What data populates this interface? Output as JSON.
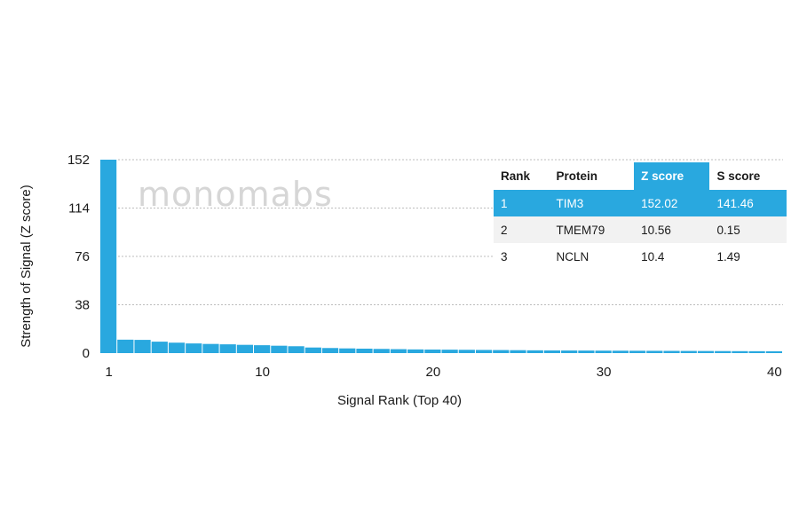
{
  "watermark": "monomabs",
  "chart_data": {
    "type": "bar",
    "title": "",
    "xlabel": "Signal Rank (Top 40)",
    "ylabel": "Strength of Signal (Z score)",
    "ylim": [
      0,
      152
    ],
    "yticks": [
      0,
      38,
      76,
      114,
      152
    ],
    "xticks": [
      1,
      10,
      20,
      30,
      40
    ],
    "grid": "horizontal dashed",
    "x": [
      1,
      2,
      3,
      4,
      5,
      6,
      7,
      8,
      9,
      10,
      11,
      12,
      13,
      14,
      15,
      16,
      17,
      18,
      19,
      20,
      21,
      22,
      23,
      24,
      25,
      26,
      27,
      28,
      29,
      30,
      31,
      32,
      33,
      34,
      35,
      36,
      37,
      38,
      39,
      40
    ],
    "values": [
      152.02,
      10.56,
      10.4,
      9.0,
      8.2,
      7.6,
      7.2,
      6.9,
      6.5,
      6.2,
      5.8,
      5.4,
      4.4,
      4.0,
      3.7,
      3.5,
      3.3,
      3.1,
      2.9,
      2.8,
      2.7,
      2.6,
      2.5,
      2.4,
      2.3,
      2.2,
      2.1,
      2.05,
      2.0,
      1.95,
      1.9,
      1.85,
      1.8,
      1.75,
      1.7,
      1.65,
      1.6,
      1.55,
      1.5,
      1.45
    ],
    "bar_color": "#29a8df"
  },
  "table": {
    "headers": [
      "Rank",
      "Protein",
      "Z score",
      "S score"
    ],
    "highlight_color": "#29a8df",
    "rows": [
      {
        "rank": "1",
        "protein": "TIM3",
        "z": "152.02",
        "s": "141.46"
      },
      {
        "rank": "2",
        "protein": "TMEM79",
        "z": "10.56",
        "s": "0.15"
      },
      {
        "rank": "3",
        "protein": "NCLN",
        "z": "10.4",
        "s": "1.49"
      }
    ]
  }
}
